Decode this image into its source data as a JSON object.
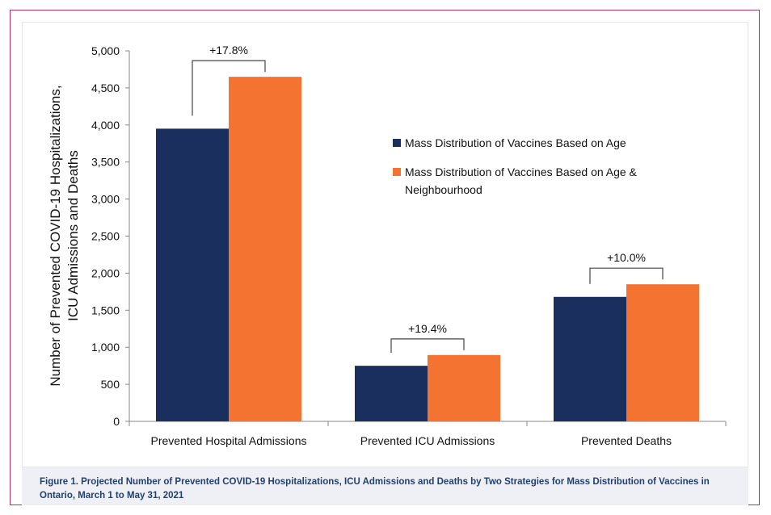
{
  "chart_data": {
    "type": "bar",
    "categories": [
      "Prevented Hospital Admissions",
      "Prevented ICU Admissions",
      "Prevented Deaths"
    ],
    "series": [
      {
        "name": "Mass Distribution of Vaccines Based on Age",
        "values": [
          3950,
          750,
          1680
        ],
        "color": "#1b2f5e"
      },
      {
        "name": "Mass Distribution of Vaccines Based on Age & Neighbourhood",
        "values": [
          4650,
          895,
          1850
        ],
        "color": "#f47331"
      }
    ],
    "annotations": [
      "+17.8%",
      "+19.4%",
      "+10.0%"
    ],
    "ylabel_lines": [
      "Number of Prevented COVID-19 Hospitalizations,",
      "ICU Admissions and Deaths"
    ],
    "ylim": [
      0,
      5000
    ],
    "yticks": [
      0,
      500,
      1000,
      1500,
      2000,
      2500,
      3000,
      3500,
      4000,
      4500,
      5000
    ],
    "ytick_labels": [
      "0",
      "500",
      "1,000",
      "1,500",
      "2,000",
      "2,500",
      "3,000",
      "3,500",
      "4,000",
      "4,500",
      "5,000"
    ],
    "legend_lines": [
      [
        "Mass Distribution of Vaccines Based on Age"
      ],
      [
        "Mass Distribution of Vaccines Based on Age &",
        "Neighbourhood"
      ]
    ],
    "legend_position": "center-right",
    "grid": false
  },
  "caption": "Figure 1. Projected Number of Prevented COVID-19 Hospitalizations, ICU Admissions and Deaths by Two Strategies for Mass Distribution of Vaccines in Ontario, March 1 to May 31, 2021"
}
